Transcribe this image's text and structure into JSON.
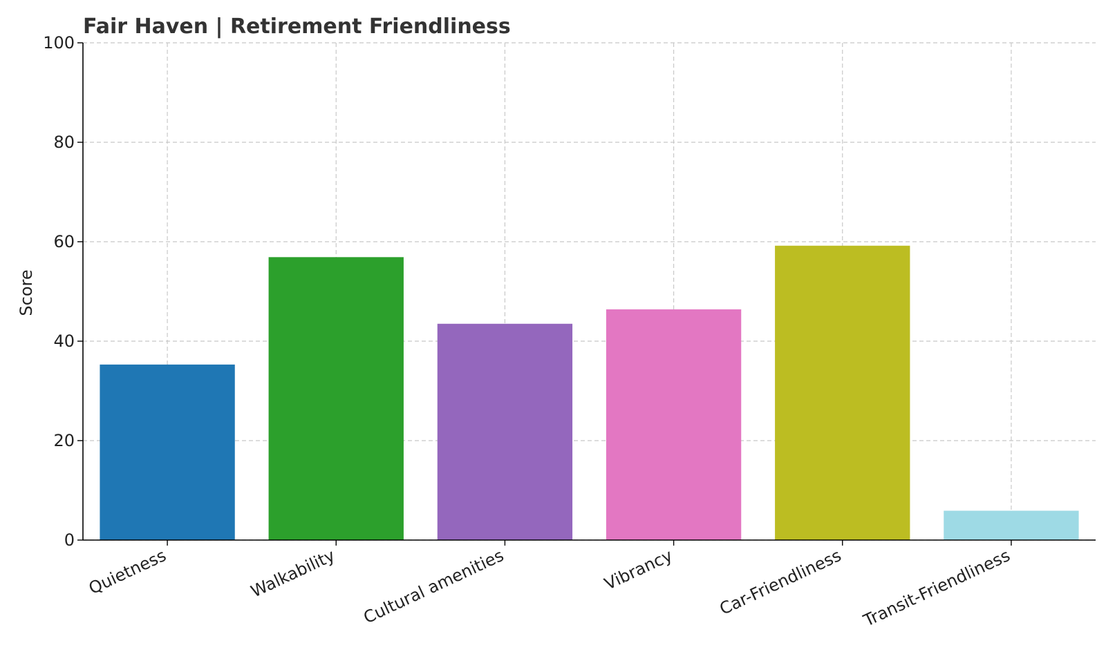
{
  "chart_data": {
    "type": "bar",
    "title": "Fair Haven | Retirement Friendliness",
    "xlabel": "",
    "ylabel": "Score",
    "ylim": [
      0,
      100
    ],
    "yticks": [
      0,
      20,
      40,
      60,
      80,
      100
    ],
    "grid": true,
    "categories": [
      "Quietness",
      "Walkability",
      "Cultural amenities",
      "Vibrancy",
      "Car-Friendliness",
      "Transit-Friendliness"
    ],
    "values": [
      35.3,
      56.9,
      43.5,
      46.4,
      59.2,
      5.9
    ],
    "colors": [
      "#1f77b4",
      "#2ca02c",
      "#9467bd",
      "#e377c2",
      "#bcbd22",
      "#9edae5"
    ]
  }
}
